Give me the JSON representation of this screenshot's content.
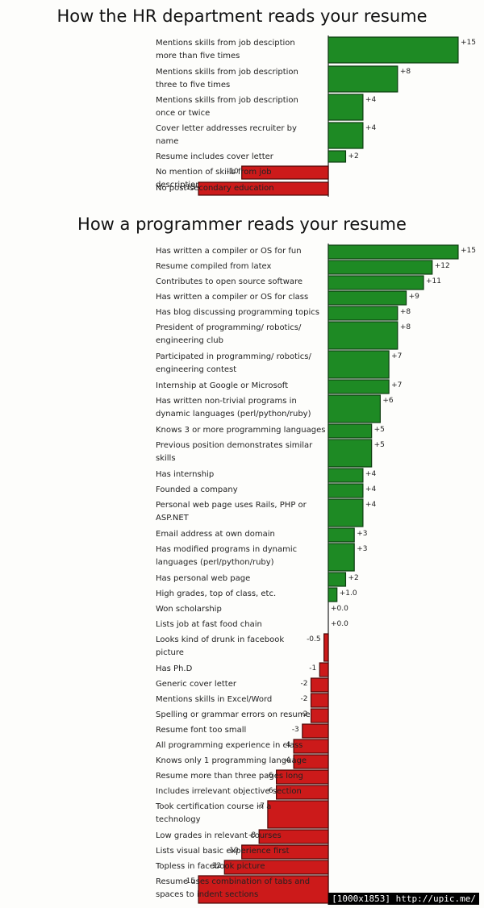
{
  "chart_data": [
    {
      "type": "bar",
      "title": "How the HR department reads your resume",
      "categories": [
        "Mentions skills from job desciption more than five times",
        "Mentions skills from job description three to five times",
        "Mentions skills from job description once or twice",
        "Cover letter addresses recruiter by name",
        "Resume includes cover letter",
        "No mention of skills from job description",
        "No post-secondary education"
      ],
      "values": [
        15,
        8,
        4,
        4,
        2,
        -10,
        -15
      ],
      "value_labels": [
        "+15",
        "+8",
        "+4",
        "+4",
        "+2",
        "-10",
        "-15"
      ],
      "colors": {
        "positive": "#1e8a24",
        "negative": "#cc1a1a"
      }
    },
    {
      "type": "bar",
      "title": "How a programmer reads your resume",
      "categories": [
        "Has written a compiler or OS for fun",
        "Resume compiled from latex",
        "Contributes to open source software",
        "Has written a compiler or OS for class",
        "Has blog discussing programming topics",
        "President of programming/ robotics/ engineering club",
        "Participated in programming/ robotics/ engineering contest",
        "Internship at Google or Microsoft",
        "Has written non-trivial programs in dynamic languages (perl/python/ruby)",
        "Knows 3 or more programming languages",
        "Previous position demonstrates similar skills",
        "Has internship",
        "Founded a company",
        "Personal web page uses Rails, PHP or ASP.NET",
        "Email address at own domain",
        "Has modified programs in dynamic languages (perl/python/ruby)",
        "Has personal web page",
        "High grades, top of class, etc.",
        "Won scholarship",
        "Lists job at fast food chain",
        "Looks kind of drunk in facebook picture",
        "Has Ph.D",
        "Generic cover letter",
        "Mentions skills in Excel/Word",
        "Spelling or grammar errors on resume",
        "Resume font too small",
        "All programming experience in class",
        "Knows only 1 programming language",
        "Resume more than three pages long",
        "Includes irrelevant objective section",
        "Took certification course in a technology",
        "Low grades in relevant courses",
        "Lists visual basic experience first",
        "Topless in facebook picture",
        "Resume uses combination of tabs and spaces to indent sections"
      ],
      "values": [
        15,
        12,
        11,
        9,
        8,
        8,
        7,
        7,
        6,
        5,
        5,
        4,
        4,
        4,
        3,
        3,
        2,
        1,
        0,
        0,
        -0.5,
        -1,
        -2,
        -2,
        -2,
        -3,
        -4,
        -4,
        -6,
        -6,
        -7,
        -8,
        -10,
        -12,
        -15
      ],
      "value_labels": [
        "+15",
        "+12",
        "+11",
        "+9",
        "+8",
        "+8",
        "+7",
        "+7",
        "+6",
        "+5",
        "+5",
        "+4",
        "+4",
        "+4",
        "+3",
        "+3",
        "+2",
        "+1.0",
        "+0.0",
        "+0.0",
        "-0.5",
        "-1",
        "-2",
        "-2",
        "-2",
        "-3",
        "-4",
        "-4",
        "-6",
        "-6",
        "-7",
        "-8",
        "-10",
        "-12",
        "-15"
      ],
      "colors": {
        "positive": "#1e8a24",
        "negative": "#cc1a1a"
      }
    }
  ],
  "watermark": "[1000x1853] http://upic.me/"
}
